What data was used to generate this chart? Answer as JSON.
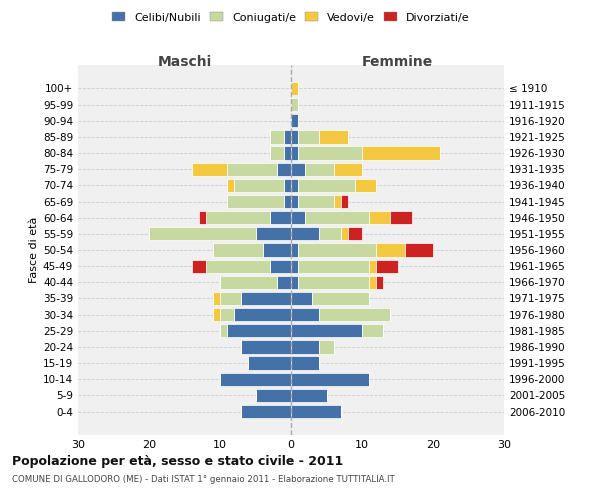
{
  "age_groups": [
    "0-4",
    "5-9",
    "10-14",
    "15-19",
    "20-24",
    "25-29",
    "30-34",
    "35-39",
    "40-44",
    "45-49",
    "50-54",
    "55-59",
    "60-64",
    "65-69",
    "70-74",
    "75-79",
    "80-84",
    "85-89",
    "90-94",
    "95-99",
    "100+"
  ],
  "birth_years": [
    "2006-2010",
    "2001-2005",
    "1996-2000",
    "1991-1995",
    "1986-1990",
    "1981-1985",
    "1976-1980",
    "1971-1975",
    "1966-1970",
    "1961-1965",
    "1956-1960",
    "1951-1955",
    "1946-1950",
    "1941-1945",
    "1936-1940",
    "1931-1935",
    "1926-1930",
    "1921-1925",
    "1916-1920",
    "1911-1915",
    "≤ 1910"
  ],
  "colors": {
    "celibe": "#4472a8",
    "coniugato": "#c5d9a0",
    "vedovo": "#f5c842",
    "divorziato": "#cc2222"
  },
  "maschi": {
    "celibe": [
      7,
      5,
      10,
      6,
      7,
      9,
      8,
      7,
      2,
      3,
      4,
      5,
      3,
      1,
      1,
      2,
      1,
      1,
      0,
      0,
      0
    ],
    "coniugato": [
      0,
      0,
      0,
      0,
      0,
      1,
      2,
      3,
      8,
      9,
      7,
      15,
      9,
      8,
      7,
      7,
      2,
      2,
      0,
      0,
      0
    ],
    "vedovo": [
      0,
      0,
      0,
      0,
      0,
      0,
      1,
      1,
      0,
      0,
      0,
      0,
      0,
      0,
      1,
      5,
      0,
      0,
      0,
      0,
      0
    ],
    "divorziato": [
      0,
      0,
      0,
      0,
      0,
      0,
      0,
      0,
      0,
      2,
      0,
      0,
      1,
      0,
      0,
      0,
      0,
      0,
      0,
      0,
      0
    ]
  },
  "femmine": {
    "celibe": [
      7,
      5,
      11,
      4,
      4,
      10,
      4,
      3,
      1,
      1,
      1,
      4,
      2,
      1,
      1,
      2,
      1,
      1,
      1,
      0,
      0
    ],
    "coniugato": [
      0,
      0,
      0,
      0,
      2,
      3,
      10,
      8,
      10,
      10,
      11,
      3,
      9,
      5,
      8,
      4,
      9,
      3,
      0,
      1,
      0
    ],
    "vedovo": [
      0,
      0,
      0,
      0,
      0,
      0,
      0,
      0,
      1,
      1,
      4,
      1,
      3,
      1,
      3,
      4,
      11,
      4,
      0,
      0,
      1
    ],
    "divorziato": [
      0,
      0,
      0,
      0,
      0,
      0,
      0,
      0,
      1,
      3,
      4,
      2,
      3,
      1,
      0,
      0,
      0,
      0,
      0,
      0,
      0
    ]
  },
  "title": "Popolazione per età, sesso e stato civile - 2011",
  "subtitle": "COMUNE DI GALLODORO (ME) - Dati ISTAT 1° gennaio 2011 - Elaborazione TUTTITALIA.IT",
  "ylabel_left": "Fasce di età",
  "xlabel_left": "Maschi",
  "xlabel_right": "Femmine",
  "xlim": [
    -30,
    30
  ],
  "xticks": [
    -30,
    -20,
    -10,
    0,
    10,
    20,
    30
  ],
  "xticklabels": [
    "30",
    "20",
    "10",
    "0",
    "10",
    "20",
    "30"
  ],
  "legend_labels": [
    "Celibi/Nubili",
    "Coniugati/e",
    "Vedovi/e",
    "Divorziati/e"
  ],
  "bg_color": "#f0f0f0"
}
